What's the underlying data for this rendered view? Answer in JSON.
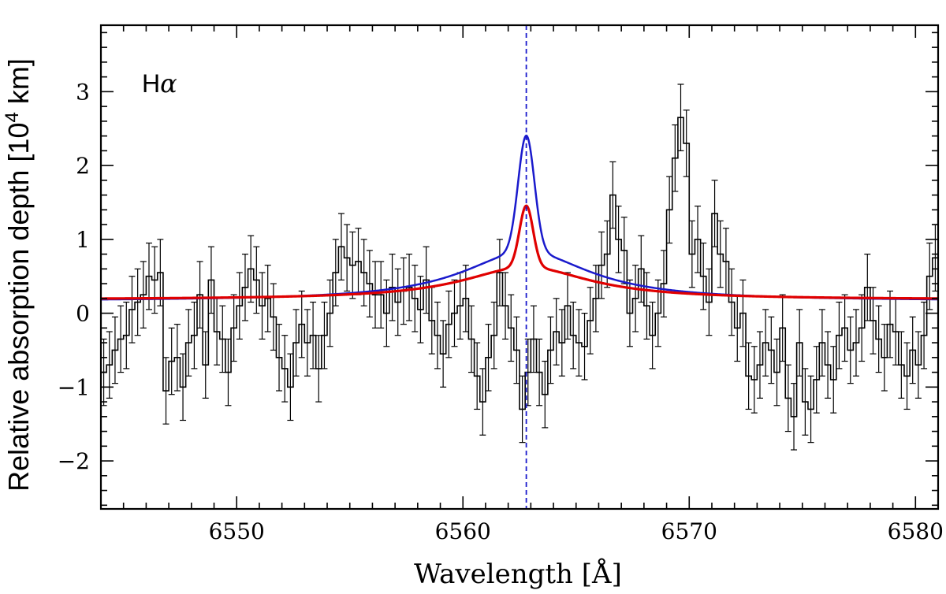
{
  "chart_data": {
    "type": "line",
    "title": "",
    "annotation": {
      "main": "H",
      "greek": "α"
    },
    "xlabel": "Wavelength [Å]",
    "ylabel": {
      "before": "Relative absorption depth [10",
      "sup": "4",
      "after": " km]"
    },
    "xlim": [
      6544.0,
      6581.0
    ],
    "ylim": [
      -2.65,
      3.9
    ],
    "xticks": [
      6550,
      6560,
      6570,
      6580
    ],
    "xtick_labels": [
      "6550",
      "6560",
      "6570",
      "6580"
    ],
    "yticks": [
      -2,
      -1,
      0,
      1,
      2,
      3
    ],
    "ytick_labels": [
      "−2",
      "−1",
      "0",
      "1",
      "2",
      "3"
    ],
    "reference_line": {
      "name": "line-center",
      "x": 6562.8,
      "color": "#1a1acc",
      "style": "dashed"
    },
    "colors": {
      "data": "#000000",
      "model_blue": "#1a1acc",
      "model_red": "#e00000"
    },
    "observed": {
      "name": "Observed spectrum",
      "bin_width": 0.25,
      "error": 0.45,
      "x_start": 6544.0,
      "y": [
        -0.8,
        -0.7,
        -0.5,
        -0.35,
        -0.3,
        0.05,
        0.15,
        0.25,
        0.5,
        0.45,
        0.55,
        -1.05,
        -0.65,
        -0.6,
        -1.0,
        -0.4,
        -0.3,
        0.25,
        -0.7,
        0.45,
        -0.25,
        -0.35,
        -0.8,
        -0.2,
        0.1,
        0.35,
        0.6,
        0.45,
        0.1,
        0.2,
        -0.05,
        -0.6,
        -0.75,
        -1.0,
        -0.4,
        -0.15,
        -0.4,
        -0.3,
        -0.75,
        -0.3,
        0.0,
        0.55,
        0.9,
        0.75,
        0.65,
        0.7,
        0.55,
        0.4,
        0.25,
        0.25,
        0.0,
        0.35,
        0.15,
        0.3,
        0.35,
        0.2,
        0.05,
        0.45,
        -0.1,
        -0.3,
        -0.55,
        -0.15,
        0.0,
        0.1,
        0.2,
        -0.35,
        -0.85,
        -1.2,
        -0.6,
        -0.3,
        0.55,
        0.1,
        -0.2,
        -0.5,
        -1.3,
        -0.8,
        -0.35,
        -0.8,
        -1.1,
        -0.5,
        -0.25,
        -0.4,
        0.1,
        -0.3,
        -0.4,
        -0.45,
        -0.1,
        0.2,
        0.65,
        0.8,
        1.6,
        1.0,
        0.85,
        0.0,
        0.2,
        0.6,
        0.1,
        -0.3,
        0.0,
        0.4,
        1.4,
        2.1,
        2.65,
        2.3,
        0.8,
        1.0,
        0.5,
        0.15,
        1.35,
        0.8,
        0.7,
        0.15,
        -0.2,
        0.0,
        -0.85,
        -0.9,
        -0.7,
        -0.4,
        -0.5,
        -0.8,
        -0.2,
        -1.15,
        -1.4,
        -0.4,
        -1.2,
        -1.3,
        -0.9,
        -0.4,
        -0.7,
        -0.9,
        -0.3,
        -0.2,
        -0.5,
        -0.4,
        -0.2,
        0.35,
        -0.1,
        -0.35,
        -0.6,
        -0.15,
        -0.25,
        -0.7,
        -0.85,
        -0.5,
        -0.7,
        -0.3,
        0.5,
        0.75,
        0.9,
        0.7,
        0.55,
        0.3,
        0.0,
        -0.5,
        -0.2,
        -0.65,
        -0.3,
        -0.35,
        0.1,
        0.3,
        -0.5,
        -0.4,
        -0.05,
        0.0,
        -0.45,
        -0.2,
        -0.05,
        -0.35,
        0.4,
        -0.85,
        -0.45,
        0.5,
        0.8,
        1.2,
        0.8,
        0.4,
        0.3,
        -0.1,
        -0.45,
        -0.55,
        -0.45,
        0.0,
        0.2,
        0.3,
        0.3,
        0.0,
        -0.25,
        -0.6,
        -0.95,
        -1.0,
        -0.8,
        -0.4,
        -0.45,
        -0.7,
        -0.95,
        -0.5,
        -0.2,
        -0.7,
        -0.3,
        0.0,
        0.1,
        0.2,
        0.4,
        0.5,
        0.2,
        0.1,
        0.3,
        0.6
      ]
    },
    "models": [
      {
        "name": "Blue model",
        "color": "#1a1acc",
        "center": 6562.8,
        "baseline": 0.165,
        "wing_amplitude": 0.67,
        "wing_width": 3.4,
        "core_amplitude": 1.57,
        "core_width": 0.36
      },
      {
        "name": "Red model",
        "color": "#e00000",
        "center": 6562.8,
        "baseline": 0.185,
        "wing_amplitude": 0.44,
        "wing_width": 3.4,
        "core_amplitude": 0.83,
        "core_width": 0.3
      }
    ]
  }
}
